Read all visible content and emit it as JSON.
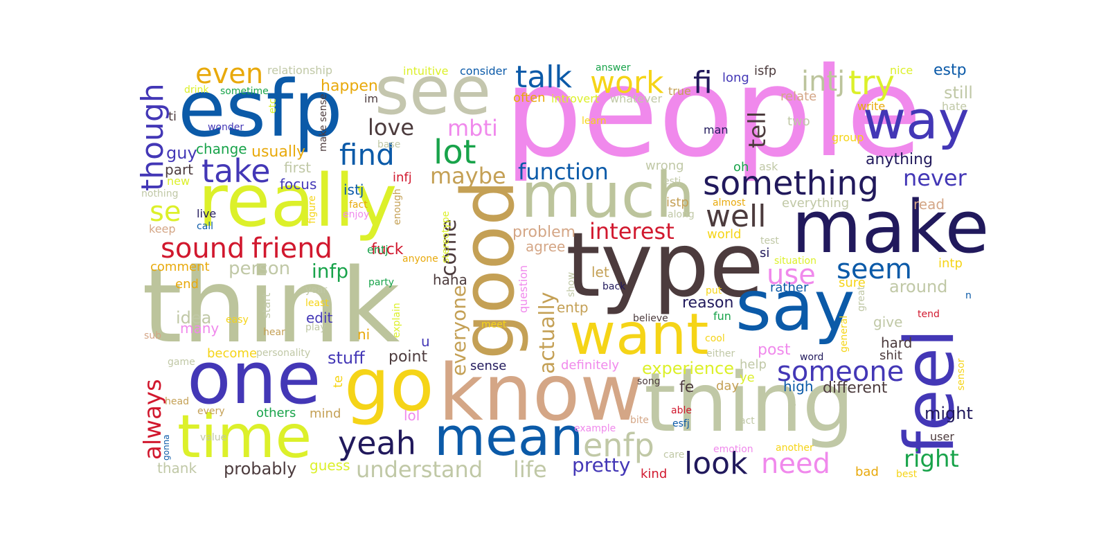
{
  "words": [
    {
      "text": "people",
      "color": "#f089ec"
    },
    {
      "text": "think",
      "color": "#bcc49c"
    },
    {
      "text": "type",
      "color": "#4c3b3d"
    },
    {
      "text": "know",
      "color": "#d4a686"
    },
    {
      "text": "thing",
      "color": "#c0c8a6"
    },
    {
      "text": "esfp",
      "color": "#0b5aa8"
    },
    {
      "text": "really",
      "color": "#dcf02a"
    },
    {
      "text": "make",
      "color": "#21195c"
    },
    {
      "text": "say",
      "color": "#0b5aa8"
    },
    {
      "text": "one",
      "color": "#4337b6"
    },
    {
      "text": "go",
      "color": "#f5d417"
    },
    {
      "text": "see",
      "color": "#c4c6ae"
    },
    {
      "text": "good",
      "color": "#c4a055"
    },
    {
      "text": "much",
      "color": "#bcc49c"
    },
    {
      "text": "want",
      "color": "#f5d417"
    },
    {
      "text": "mean",
      "color": "#0b5aa8"
    },
    {
      "text": "time",
      "color": "#dcf02a"
    },
    {
      "text": "feel",
      "color": "#4337b6"
    },
    {
      "text": "way",
      "color": "#4337b6"
    },
    {
      "text": "something",
      "color": "#21195c"
    },
    {
      "text": "well",
      "color": "#4c3b3d"
    },
    {
      "text": "friend",
      "color": "#d1182e"
    },
    {
      "text": "sound",
      "color": "#d1182e"
    },
    {
      "text": "take",
      "color": "#4337b6"
    },
    {
      "text": "find",
      "color": "#0b5aa8"
    },
    {
      "text": "lot",
      "color": "#18a34a"
    },
    {
      "text": "talk",
      "color": "#0b5aa8"
    },
    {
      "text": "work",
      "color": "#f5d417"
    },
    {
      "text": "try",
      "color": "#dcf02a"
    },
    {
      "text": "intj",
      "color": "#bcc49c"
    },
    {
      "text": "fi",
      "color": "#21195c"
    },
    {
      "text": "even",
      "color": "#e8a90b"
    },
    {
      "text": "though",
      "color": "#4337b6"
    },
    {
      "text": "love",
      "color": "#4c3b3d"
    },
    {
      "text": "mbti",
      "color": "#f089ec"
    },
    {
      "text": "function",
      "color": "#0b5aa8"
    },
    {
      "text": "maybe",
      "color": "#c4a055"
    },
    {
      "text": "yeah",
      "color": "#21195c"
    },
    {
      "text": "enfp",
      "color": "#c0c8a6"
    },
    {
      "text": "look",
      "color": "#21195c"
    },
    {
      "text": "need",
      "color": "#f089ec"
    },
    {
      "text": "someone",
      "color": "#4337b6"
    },
    {
      "text": "seem",
      "color": "#0b5aa8"
    },
    {
      "text": "interest",
      "color": "#d1182e"
    },
    {
      "text": "use",
      "color": "#f089ec"
    },
    {
      "text": "never",
      "color": "#4337b6"
    },
    {
      "text": "right",
      "color": "#18a34a"
    },
    {
      "text": "always",
      "color": "#d1182e"
    },
    {
      "text": "understand",
      "color": "#c0c8a6"
    },
    {
      "text": "life",
      "color": "#c0c8a6"
    },
    {
      "text": "pretty",
      "color": "#4337b6"
    },
    {
      "text": "infp",
      "color": "#18a34a"
    },
    {
      "text": "se",
      "color": "#dcf02a"
    },
    {
      "text": "stuff",
      "color": "#4337b6"
    },
    {
      "text": "actually",
      "color": "#c4a055"
    },
    {
      "text": "come",
      "color": "#4c3b3d"
    },
    {
      "text": "everyone",
      "color": "#c4a055"
    },
    {
      "text": "tell",
      "color": "#4c3b3d"
    },
    {
      "text": "person",
      "color": "#c0c8a6"
    },
    {
      "text": "probably",
      "color": "#4c3b3d"
    },
    {
      "text": "point",
      "color": "#4c3b3d"
    },
    {
      "text": "experience",
      "color": "#dcf02a"
    },
    {
      "text": "reason",
      "color": "#21195c"
    },
    {
      "text": "different",
      "color": "#4c3b3d"
    },
    {
      "text": "anything",
      "color": "#21195c"
    },
    {
      "text": "around",
      "color": "#c0c8a6"
    },
    {
      "text": "might",
      "color": "#21195c"
    },
    {
      "text": "still",
      "color": "#c0c8a6"
    },
    {
      "text": "estp",
      "color": "#0b5aa8"
    },
    {
      "text": "happen",
      "color": "#e8a90b"
    },
    {
      "text": "usually",
      "color": "#e8a90b"
    },
    {
      "text": "change",
      "color": "#18a34a"
    },
    {
      "text": "guy",
      "color": "#4337b6"
    },
    {
      "text": "part",
      "color": "#4c3b3d"
    },
    {
      "text": "first",
      "color": "#c0c8a6"
    },
    {
      "text": "focus",
      "color": "#4337b6"
    },
    {
      "text": "istj",
      "color": "#0b5aa8"
    },
    {
      "text": "infj",
      "color": "#d1182e"
    },
    {
      "text": "fuck",
      "color": "#d1182e"
    },
    {
      "text": "problem",
      "color": "#d4a686"
    },
    {
      "text": "agree",
      "color": "#d4a686"
    },
    {
      "text": "haha",
      "color": "#4c3b3d"
    },
    {
      "text": "idea",
      "color": "#c0c8a6"
    },
    {
      "text": "many",
      "color": "#f089ec"
    },
    {
      "text": "comment",
      "color": "#e8a90b"
    },
    {
      "text": "end",
      "color": "#e8a90b"
    },
    {
      "text": "edit",
      "color": "#4337b6"
    },
    {
      "text": "ni",
      "color": "#e8a90b"
    },
    {
      "text": "entp",
      "color": "#c4a055"
    },
    {
      "text": "let",
      "color": "#c4a055"
    },
    {
      "text": "post",
      "color": "#f089ec"
    },
    {
      "text": "rather",
      "color": "#0b5aa8"
    },
    {
      "text": "sure",
      "color": "#f5d417"
    },
    {
      "text": "intp",
      "color": "#f5d417"
    },
    {
      "text": "read",
      "color": "#d4a686"
    },
    {
      "text": "give",
      "color": "#c0c8a6"
    },
    {
      "text": "hard",
      "color": "#4c3b3d"
    },
    {
      "text": "shit",
      "color": "#4c3b3d"
    },
    {
      "text": "high",
      "color": "#0b5aa8"
    },
    {
      "text": "fe",
      "color": "#4c3b3d"
    },
    {
      "text": "day",
      "color": "#c4a055"
    },
    {
      "text": "lol",
      "color": "#f089ec"
    },
    {
      "text": "mind",
      "color": "#c4a055"
    },
    {
      "text": "others",
      "color": "#18a34a"
    },
    {
      "text": "become",
      "color": "#f5d417"
    },
    {
      "text": "kind",
      "color": "#d1182e"
    },
    {
      "text": "bad",
      "color": "#e8a90b"
    },
    {
      "text": "user",
      "color": "#4c3b3d"
    },
    {
      "text": "thank",
      "color": "#c0c8a6"
    },
    {
      "text": "guess",
      "color": "#dcf02a"
    },
    {
      "text": "definitely",
      "color": "#f089ec"
    },
    {
      "text": "sense",
      "color": "#21195c"
    },
    {
      "text": "u",
      "color": "#4337b6"
    },
    {
      "text": "te",
      "color": "#f5d417"
    },
    {
      "text": "ye",
      "color": "#dcf02a"
    },
    {
      "text": "help",
      "color": "#c0c8a6"
    },
    {
      "text": "world",
      "color": "#f5d417"
    },
    {
      "text": "ask",
      "color": "#c0c8a6"
    },
    {
      "text": "oh",
      "color": "#18a34a"
    },
    {
      "text": "wrong",
      "color": "#c0c8a6"
    },
    {
      "text": "everything",
      "color": "#c0c8a6"
    },
    {
      "text": "istp",
      "color": "#c4a055"
    },
    {
      "text": "two",
      "color": "#c0c8a6"
    },
    {
      "text": "relate",
      "color": "#d4a686"
    },
    {
      "text": "write",
      "color": "#e8a90b"
    },
    {
      "text": "isfp",
      "color": "#4c3b3d"
    },
    {
      "text": "long",
      "color": "#4337b6"
    },
    {
      "text": "often",
      "color": "#e8a90b"
    },
    {
      "text": "relationship",
      "color": "#c0c8a6"
    },
    {
      "text": "intuitive",
      "color": "#dcf02a"
    },
    {
      "text": "consider",
      "color": "#0b5aa8"
    },
    {
      "text": "answer",
      "color": "#18a34a"
    },
    {
      "text": "nice",
      "color": "#dcf02a"
    },
    {
      "text": "hate",
      "color": "#c0c8a6"
    },
    {
      "text": "drink",
      "color": "#dcf02a"
    },
    {
      "text": "sometime",
      "color": "#18a34a"
    },
    {
      "text": "im",
      "color": "#4c3b3d"
    },
    {
      "text": "ti",
      "color": "#4c3b3d"
    },
    {
      "text": "wonder",
      "color": "#4337b6"
    },
    {
      "text": "etc",
      "color": "#dcf02a"
    },
    {
      "text": "make sense",
      "color": "#4c3b3d"
    },
    {
      "text": "base",
      "color": "#c0c8a6"
    },
    {
      "text": "introvert",
      "color": "#dcf02a"
    },
    {
      "text": "whatever",
      "color": "#c0c8a6"
    },
    {
      "text": "true",
      "color": "#c4a055"
    },
    {
      "text": "learn",
      "color": "#f5d417"
    },
    {
      "text": "man",
      "color": "#21195c"
    },
    {
      "text": "group",
      "color": "#f5d417"
    },
    {
      "text": "new",
      "color": "#dcf02a"
    },
    {
      "text": "nothing",
      "color": "#c0c8a6"
    },
    {
      "text": "keep",
      "color": "#d4a686"
    },
    {
      "text": "live",
      "color": "#21195c"
    },
    {
      "text": "call",
      "color": "#0b5aa8"
    },
    {
      "text": "figure",
      "color": "#f5d417"
    },
    {
      "text": "fact",
      "color": "#e8a90b"
    },
    {
      "text": "enjoy",
      "color": "#f089ec"
    },
    {
      "text": "enough",
      "color": "#c4a055"
    },
    {
      "text": "estj",
      "color": "#c0c8a6"
    },
    {
      "text": "along",
      "color": "#c0c8a6"
    },
    {
      "text": "almost",
      "color": "#e8a90b"
    },
    {
      "text": "test",
      "color": "#c0c8a6"
    },
    {
      "text": "si",
      "color": "#21195c"
    },
    {
      "text": "situation",
      "color": "#dcf02a"
    },
    {
      "text": "entj",
      "color": "#18a34a"
    },
    {
      "text": "party",
      "color": "#18a34a"
    },
    {
      "text": "anyone",
      "color": "#e8a90b"
    },
    {
      "text": "stereotype",
      "color": "#dcf02a"
    },
    {
      "text": "start",
      "color": "#c0c8a6"
    },
    {
      "text": "year",
      "color": "#c0c8a6"
    },
    {
      "text": "least",
      "color": "#f5d417"
    },
    {
      "text": "easy",
      "color": "#f5d417"
    },
    {
      "text": "play",
      "color": "#c0c8a6"
    },
    {
      "text": "explain",
      "color": "#dcf02a"
    },
    {
      "text": "question",
      "color": "#f089ec"
    },
    {
      "text": "show",
      "color": "#c0c8a6"
    },
    {
      "text": "back",
      "color": "#21195c"
    },
    {
      "text": "believe",
      "color": "#4c3b3d"
    },
    {
      "text": "fun",
      "color": "#18a34a"
    },
    {
      "text": "put",
      "color": "#f5d417"
    },
    {
      "text": "cool",
      "color": "#f5d417"
    },
    {
      "text": "great",
      "color": "#c0c8a6"
    },
    {
      "text": "n",
      "color": "#0b5aa8"
    },
    {
      "text": "tend",
      "color": "#d1182e"
    },
    {
      "text": "general",
      "color": "#f5d417"
    },
    {
      "text": "either",
      "color": "#c0c8a6"
    },
    {
      "text": "word",
      "color": "#21195c"
    },
    {
      "text": "sensor",
      "color": "#f5d417"
    },
    {
      "text": "hear",
      "color": "#c4a055"
    },
    {
      "text": "sub",
      "color": "#d4a686"
    },
    {
      "text": "personality",
      "color": "#c0c8a6"
    },
    {
      "text": "game",
      "color": "#c0c8a6"
    },
    {
      "text": "meet",
      "color": "#f5d417"
    },
    {
      "text": "song",
      "color": "#4c3b3d"
    },
    {
      "text": "head",
      "color": "#c4a055"
    },
    {
      "text": "every",
      "color": "#c4a055"
    },
    {
      "text": "value",
      "color": "#c0c8a6"
    },
    {
      "text": "gonna",
      "color": "#0b5aa8"
    },
    {
      "text": "able",
      "color": "#d1182e"
    },
    {
      "text": "esfj",
      "color": "#0b5aa8"
    },
    {
      "text": "act",
      "color": "#c0c8a6"
    },
    {
      "text": "may",
      "color": "#c0c8a6"
    },
    {
      "text": "example",
      "color": "#f089ec"
    },
    {
      "text": "bite",
      "color": "#d4a686"
    },
    {
      "text": "care",
      "color": "#c0c8a6"
    },
    {
      "text": "emotion",
      "color": "#f089ec"
    },
    {
      "text": "another",
      "color": "#f5d417"
    },
    {
      "text": "best",
      "color": "#f5d417"
    }
  ]
}
